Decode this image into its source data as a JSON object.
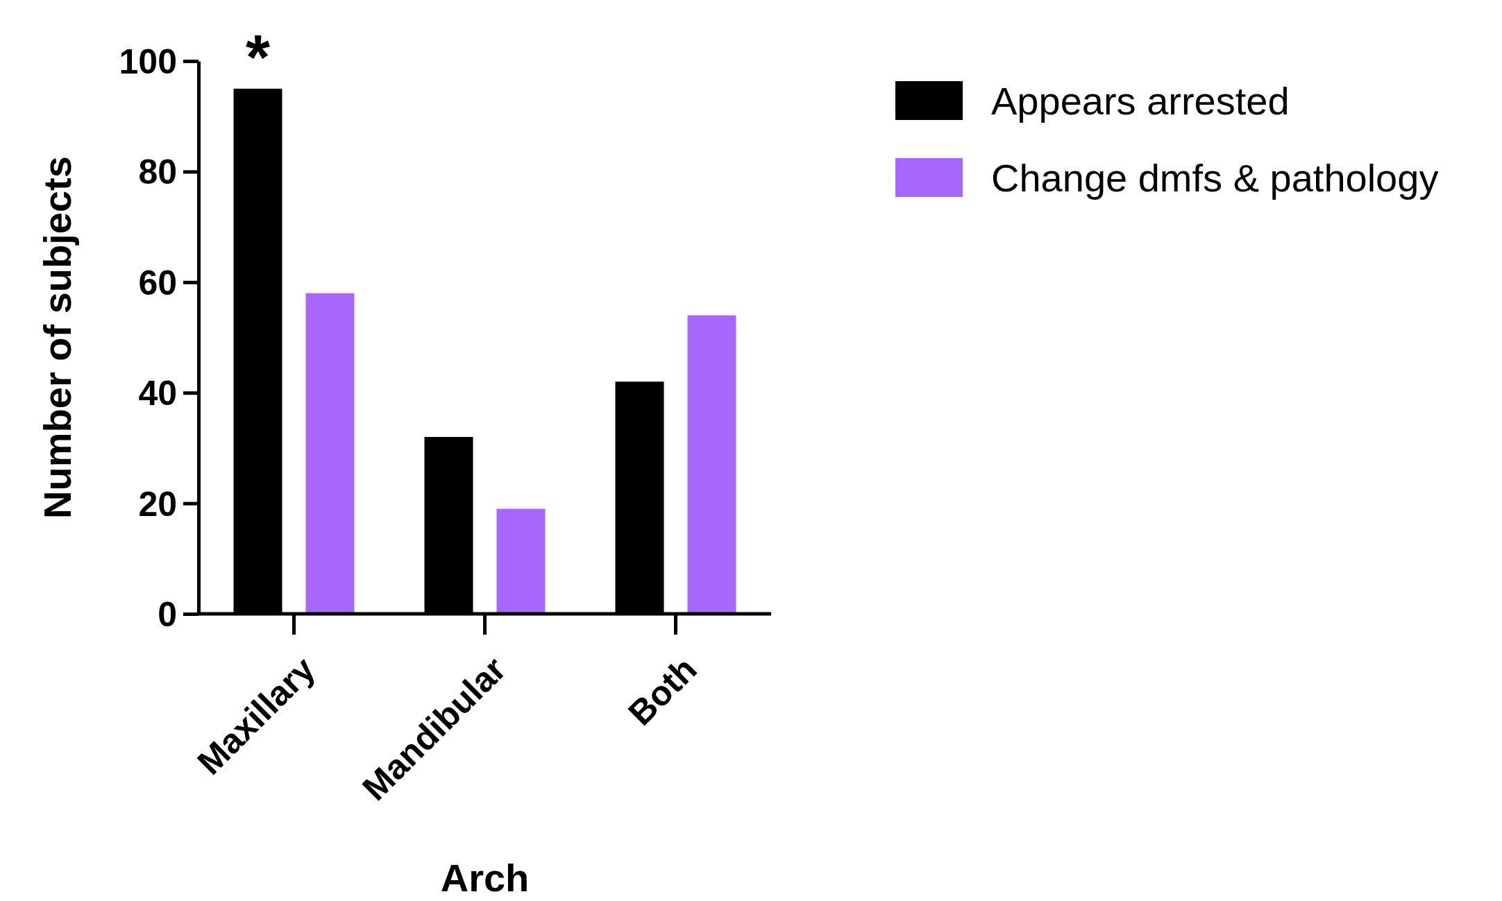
{
  "chart_data": {
    "type": "bar",
    "xlabel": "Arch",
    "ylabel": "Number of subjects",
    "categories": [
      "Maxillary",
      "Mandibular",
      "Both"
    ],
    "series": [
      {
        "name": "Appears arrested",
        "color": "#000000",
        "values": [
          95,
          32,
          42
        ]
      },
      {
        "name": "Change dmfs & pathology",
        "color": "#a866fc",
        "values": [
          58,
          19,
          54
        ]
      }
    ],
    "ylim": [
      0,
      100
    ],
    "yticks": [
      0,
      20,
      40,
      60,
      80,
      100
    ],
    "grid": false,
    "legend": "top right",
    "annotations": [
      {
        "text": "*",
        "x": "Maxillary",
        "y": 95
      }
    ]
  }
}
